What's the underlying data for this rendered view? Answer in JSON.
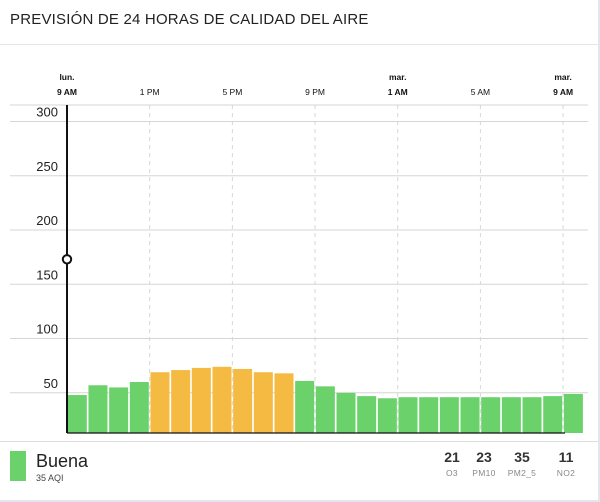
{
  "title": "PREVISIÓN DE 24 HORAS DE CALIDAD DEL AIRE",
  "chart_data": {
    "type": "bar",
    "ylim": [
      0,
      320
    ],
    "yticks": [
      50,
      100,
      150,
      200,
      250,
      300
    ],
    "xticks": [
      {
        "day": "lun.",
        "time": "9 AM",
        "bold": true,
        "hour_index": 0
      },
      {
        "day": "",
        "time": "1 PM",
        "bold": false,
        "hour_index": 4
      },
      {
        "day": "",
        "time": "5 PM",
        "bold": false,
        "hour_index": 8
      },
      {
        "day": "",
        "time": "9 PM",
        "bold": false,
        "hour_index": 12
      },
      {
        "day": "mar.",
        "time": "1 AM",
        "bold": true,
        "hour_index": 16
      },
      {
        "day": "",
        "time": "5 AM",
        "bold": false,
        "hour_index": 20
      },
      {
        "day": "mar.",
        "time": "9 AM",
        "bold": true,
        "hour_index": 24
      }
    ],
    "values": [
      35,
      44,
      42,
      47,
      56,
      58,
      60,
      61,
      59,
      56,
      55,
      48,
      43,
      37,
      34,
      32,
      33,
      33,
      33,
      33,
      33,
      33,
      33,
      34,
      36
    ],
    "current_marker_value": 173,
    "grid": true
  },
  "colors": {
    "good": "#6bd16b",
    "moderate": "#f5ba41",
    "grid": "#d6d6d6",
    "axis": "#111111"
  },
  "footer": {
    "category": "Buena",
    "aqi": "35 AQI",
    "pollutants": [
      {
        "value": "21",
        "name": "O3"
      },
      {
        "value": "23",
        "name": "PM10"
      },
      {
        "value": "35",
        "name": "PM2_5"
      },
      {
        "value": "11",
        "name": "NO2"
      }
    ]
  }
}
